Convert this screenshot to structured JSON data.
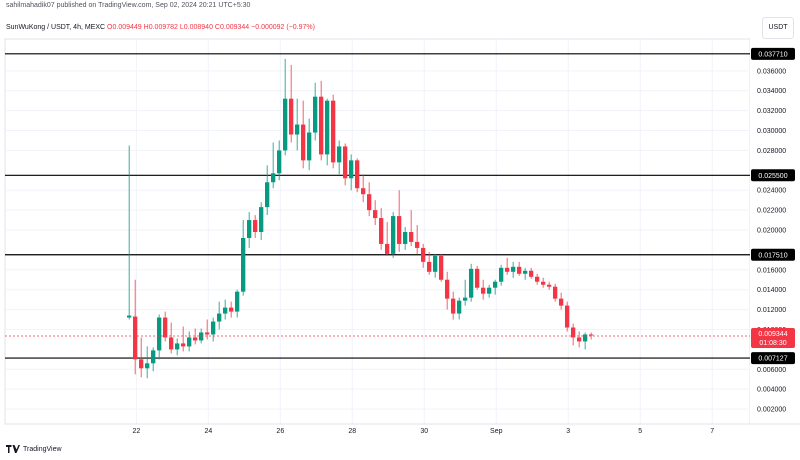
{
  "header": {
    "publisher": "sahilmahadik07 published on TradingView.com, Sep 02, 2024 20:21 UTC+5:30"
  },
  "legend": {
    "symbol": "SunWuKong / USDT, 4h, MEXC",
    "open": "O0.009449",
    "high": "H0.009782",
    "low": "L0.008940",
    "close": "C0.009344",
    "change": "−0.000092 (−0.97%)"
  },
  "currency_button": "USDT",
  "footer": {
    "brand": "TradingView"
  },
  "colors": {
    "up": "#089981",
    "down": "#f23645",
    "level_line": "#000000",
    "grid": "#f0f3fa"
  },
  "chart_data": {
    "type": "candlestick",
    "title": "",
    "xlabel": "",
    "ylabel": "",
    "ylim": [
      0.0005,
      0.0392
    ],
    "y_ticks": [
      "0.036000",
      "0.034000",
      "0.032000",
      "0.030000",
      "0.028000",
      "0.024000",
      "0.022000",
      "0.020000",
      "0.016000",
      "0.014000",
      "0.012000",
      "0.010000",
      "0.006000",
      "0.004000",
      "0.002000"
    ],
    "x_ticks": [
      "22",
      "24",
      "26",
      "28",
      "30",
      "Sep",
      "3",
      "5",
      "7"
    ],
    "x_tick_days": [
      22,
      24,
      26,
      28,
      30,
      32,
      34,
      36,
      38
    ],
    "x_range_days": [
      18.35,
      39.05
    ],
    "first_candle_day": 21.8,
    "candle_step_days": 0.1667,
    "horizontal_levels": [
      {
        "value": 0.03771,
        "label": "0.037710"
      },
      {
        "value": 0.0255,
        "label": "0.025500"
      },
      {
        "value": 0.01751,
        "label": "0.017510"
      },
      {
        "value": 0.007127,
        "label": "0.007127"
      }
    ],
    "current_price": {
      "value": 0.009344,
      "label": "0.009344",
      "countdown": "01:08:30"
    },
    "candles": [
      [
        0.0112,
        0.0285,
        0.011,
        0.0114
      ],
      [
        0.0113,
        0.015,
        0.0055,
        0.007
      ],
      [
        0.007,
        0.0092,
        0.0052,
        0.0061
      ],
      [
        0.0061,
        0.0083,
        0.0051,
        0.0066
      ],
      [
        0.0066,
        0.0082,
        0.0058,
        0.0079
      ],
      [
        0.0079,
        0.0115,
        0.007,
        0.0112
      ],
      [
        0.0112,
        0.0118,
        0.0088,
        0.0092
      ],
      [
        0.0092,
        0.0107,
        0.0076,
        0.008
      ],
      [
        0.008,
        0.0091,
        0.0074,
        0.0086
      ],
      [
        0.0086,
        0.0103,
        0.0078,
        0.0083
      ],
      [
        0.0083,
        0.0098,
        0.0078,
        0.0092
      ],
      [
        0.0092,
        0.0101,
        0.0085,
        0.0089
      ],
      [
        0.0089,
        0.0101,
        0.0086,
        0.0097
      ],
      [
        0.0097,
        0.011,
        0.009,
        0.0095
      ],
      [
        0.0095,
        0.0112,
        0.0088,
        0.0108
      ],
      [
        0.0108,
        0.0128,
        0.01,
        0.0116
      ],
      [
        0.0116,
        0.013,
        0.011,
        0.0122
      ],
      [
        0.0122,
        0.0128,
        0.0112,
        0.0118
      ],
      [
        0.0118,
        0.014,
        0.0112,
        0.0138
      ],
      [
        0.0138,
        0.021,
        0.0134,
        0.0192
      ],
      [
        0.0192,
        0.0218,
        0.0182,
        0.021
      ],
      [
        0.021,
        0.0215,
        0.0192,
        0.0198
      ],
      [
        0.0198,
        0.0228,
        0.019,
        0.0223
      ],
      [
        0.0223,
        0.0265,
        0.0215,
        0.0248
      ],
      [
        0.0248,
        0.0288,
        0.0242,
        0.0257
      ],
      [
        0.0257,
        0.029,
        0.025,
        0.028
      ],
      [
        0.028,
        0.0372,
        0.0275,
        0.0332
      ],
      [
        0.0332,
        0.0366,
        0.0288,
        0.0296
      ],
      [
        0.0296,
        0.0332,
        0.028,
        0.0306
      ],
      [
        0.0306,
        0.033,
        0.0262,
        0.027
      ],
      [
        0.027,
        0.0312,
        0.026,
        0.0298
      ],
      [
        0.0298,
        0.0348,
        0.029,
        0.0334
      ],
      [
        0.0334,
        0.035,
        0.027,
        0.0276
      ],
      [
        0.0276,
        0.0332,
        0.0265,
        0.033
      ],
      [
        0.033,
        0.0336,
        0.0262,
        0.0268
      ],
      [
        0.0268,
        0.029,
        0.0256,
        0.0284
      ],
      [
        0.0284,
        0.0287,
        0.0245,
        0.0252
      ],
      [
        0.0252,
        0.0276,
        0.024,
        0.027
      ],
      [
        0.027,
        0.0272,
        0.0238,
        0.0242
      ],
      [
        0.0242,
        0.0256,
        0.0228,
        0.0236
      ],
      [
        0.0236,
        0.0248,
        0.0214,
        0.022
      ],
      [
        0.022,
        0.023,
        0.0205,
        0.0212
      ],
      [
        0.0212,
        0.0222,
        0.018,
        0.0186
      ],
      [
        0.0186,
        0.0208,
        0.0174,
        0.0176
      ],
      [
        0.0176,
        0.0218,
        0.0172,
        0.0214
      ],
      [
        0.0214,
        0.024,
        0.0178,
        0.0186
      ],
      [
        0.0186,
        0.0203,
        0.018,
        0.0198
      ],
      [
        0.0198,
        0.022,
        0.0184,
        0.0188
      ],
      [
        0.0188,
        0.0205,
        0.0176,
        0.0182
      ],
      [
        0.0182,
        0.0186,
        0.0162,
        0.0168
      ],
      [
        0.0168,
        0.0178,
        0.0155,
        0.0158
      ],
      [
        0.0158,
        0.0176,
        0.0152,
        0.0174
      ],
      [
        0.0174,
        0.0176,
        0.0148,
        0.015
      ],
      [
        0.015,
        0.0158,
        0.012,
        0.0131
      ],
      [
        0.0131,
        0.0138,
        0.011,
        0.0116
      ],
      [
        0.0116,
        0.0132,
        0.011,
        0.0129
      ],
      [
        0.0129,
        0.015,
        0.0124,
        0.0132
      ],
      [
        0.0132,
        0.0166,
        0.0128,
        0.0161
      ],
      [
        0.0161,
        0.0164,
        0.014,
        0.0142
      ],
      [
        0.0142,
        0.015,
        0.013,
        0.0136
      ],
      [
        0.0136,
        0.0145,
        0.0132,
        0.0142
      ],
      [
        0.0142,
        0.015,
        0.0135,
        0.0148
      ],
      [
        0.0148,
        0.0165,
        0.0144,
        0.0162
      ],
      [
        0.0162,
        0.0172,
        0.0155,
        0.0158
      ],
      [
        0.0158,
        0.0168,
        0.0152,
        0.0163
      ],
      [
        0.0163,
        0.0168,
        0.0154,
        0.0156
      ],
      [
        0.0156,
        0.0162,
        0.015,
        0.0159
      ],
      [
        0.0159,
        0.0162,
        0.0151,
        0.0153
      ],
      [
        0.0153,
        0.0156,
        0.0145,
        0.0148
      ],
      [
        0.0148,
        0.0152,
        0.0142,
        0.0145
      ],
      [
        0.0145,
        0.0148,
        0.014,
        0.0143
      ],
      [
        0.0143,
        0.0146,
        0.0128,
        0.0131
      ],
      [
        0.0131,
        0.0137,
        0.012,
        0.0124
      ],
      [
        0.0124,
        0.0128,
        0.0098,
        0.0102
      ],
      [
        0.0102,
        0.0106,
        0.0084,
        0.0092
      ],
      [
        0.0092,
        0.0098,
        0.0082,
        0.0088
      ],
      [
        0.0088,
        0.0097,
        0.008,
        0.0095
      ],
      [
        0.0095,
        0.0097,
        0.009,
        0.0094
      ]
    ]
  }
}
